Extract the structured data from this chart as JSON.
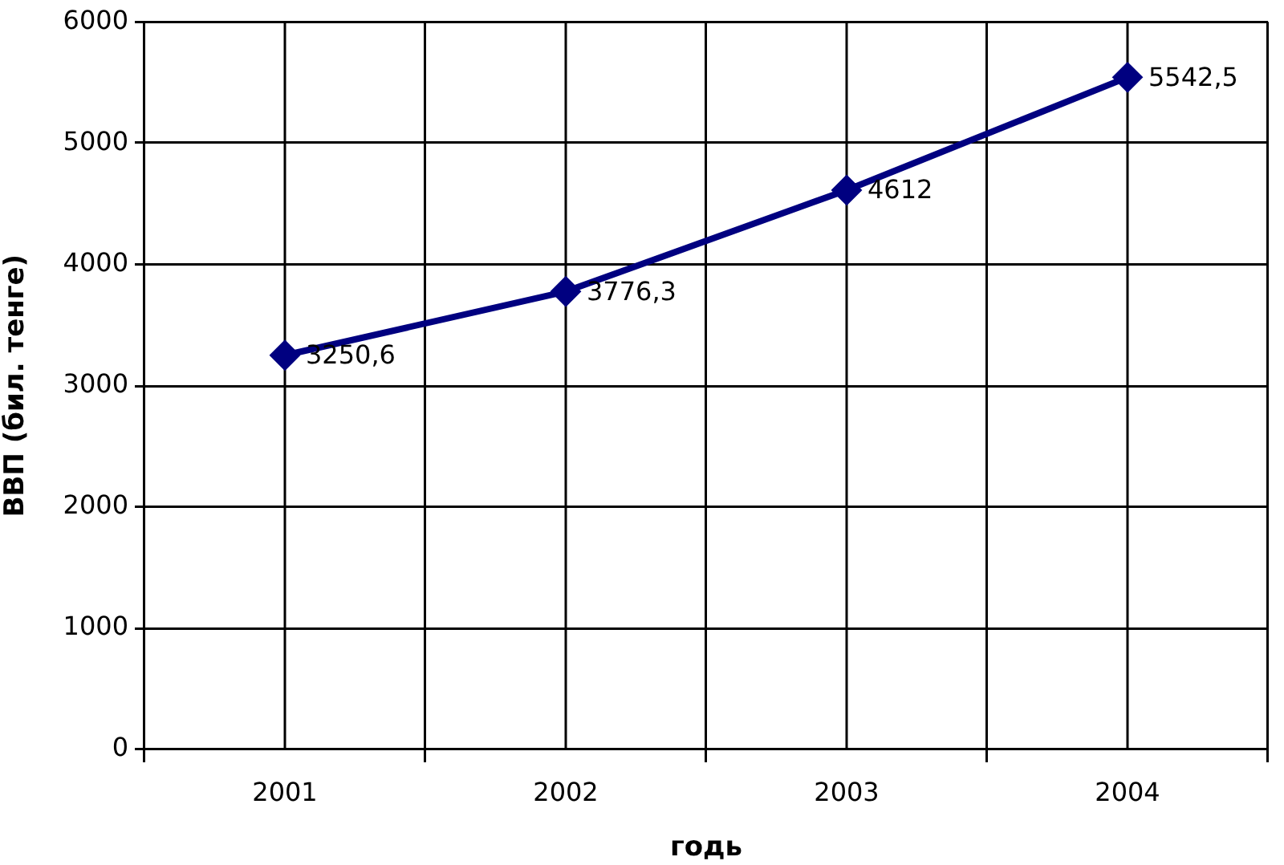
{
  "chart_data": {
    "type": "line",
    "xlabel": "годь",
    "ylabel": "ВВП (бил. тенге)",
    "categories": [
      "2001",
      "2002",
      "2003",
      "2004"
    ],
    "series": [
      {
        "color": "#000080",
        "values": [
          3250.6,
          3776.3,
          4612,
          5542.5
        ],
        "value_labels": [
          "3250,6",
          "3776,3",
          "4612",
          "5542,5"
        ]
      }
    ],
    "ylim": [
      0,
      6000
    ],
    "yticks": [
      0,
      1000,
      2000,
      3000,
      4000,
      5000,
      6000
    ],
    "grid": true,
    "marker": "diamond",
    "line_style": "solid"
  }
}
